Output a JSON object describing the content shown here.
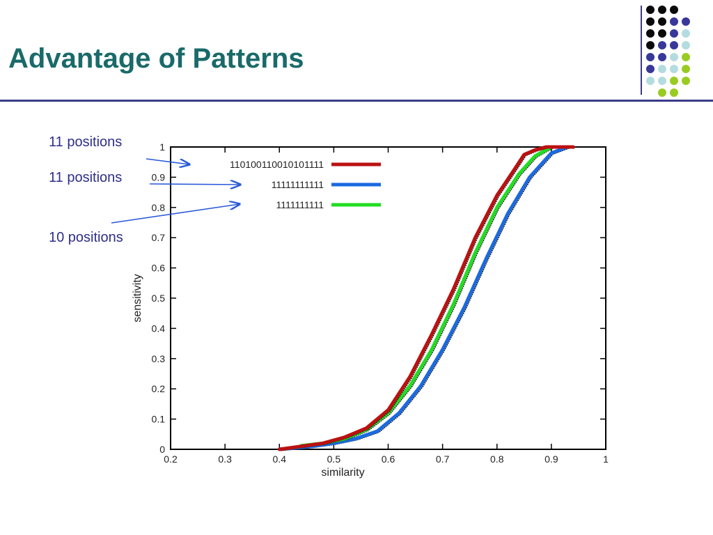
{
  "slide": {
    "title": "Advantage of Patterns"
  },
  "decoration": {
    "dot_colors": {
      "black": "#0a0a0a",
      "indigo": "#38389a",
      "lightblue": "#b4dce0",
      "lime": "#99cc22"
    },
    "dot_rows": [
      [
        "black",
        "black",
        "black",
        null
      ],
      [
        "black",
        "black",
        "indigo",
        "indigo"
      ],
      [
        "black",
        "black",
        "indigo",
        "lightblue"
      ],
      [
        "black",
        "indigo",
        "indigo",
        "lightblue"
      ],
      [
        "indigo",
        "indigo",
        "lightblue",
        "lime"
      ],
      [
        "indigo",
        "lightblue",
        "lightblue",
        "lime"
      ],
      [
        "lightblue",
        "lightblue",
        "lime",
        "lime"
      ],
      [
        null,
        "lime",
        "lime",
        null
      ]
    ]
  },
  "annotations": [
    {
      "label": "11 positions",
      "series": 0
    },
    {
      "label": "11 positions",
      "series": 1
    },
    {
      "label": "10 positions",
      "series": 2
    }
  ],
  "chart_data": {
    "type": "line",
    "xlabel": "similarity",
    "ylabel": "sensitivity",
    "xlim": [
      0.2,
      1.0
    ],
    "ylim": [
      0.0,
      1.0
    ],
    "x_ticks": [
      "0.2",
      "0.3",
      "0.4",
      "0.5",
      "0.6",
      "0.7",
      "0.8",
      "0.9",
      "1"
    ],
    "y_ticks": [
      "0",
      "0.1",
      "0.2",
      "0.3",
      "0.4",
      "0.5",
      "0.6",
      "0.7",
      "0.8",
      "0.9",
      "1"
    ],
    "grid": false,
    "legend_position": "top-left",
    "series": [
      {
        "name": "110100110010101111",
        "color": "#bb1111",
        "points": [
          [
            0.4,
            0.0
          ],
          [
            0.44,
            0.01
          ],
          [
            0.48,
            0.02
          ],
          [
            0.52,
            0.04
          ],
          [
            0.56,
            0.07
          ],
          [
            0.6,
            0.13
          ],
          [
            0.64,
            0.24
          ],
          [
            0.68,
            0.38
          ],
          [
            0.72,
            0.53
          ],
          [
            0.76,
            0.7
          ],
          [
            0.8,
            0.84
          ],
          [
            0.83,
            0.92
          ],
          [
            0.85,
            0.975
          ],
          [
            0.87,
            0.99
          ],
          [
            0.89,
            1.0
          ],
          [
            0.94,
            1.0
          ]
        ]
      },
      {
        "name": "11111111111",
        "color": "#1a6ae0",
        "points": [
          [
            0.4,
            0.0
          ],
          [
            0.46,
            0.01
          ],
          [
            0.5,
            0.02
          ],
          [
            0.54,
            0.035
          ],
          [
            0.58,
            0.06
          ],
          [
            0.62,
            0.12
          ],
          [
            0.66,
            0.21
          ],
          [
            0.7,
            0.33
          ],
          [
            0.74,
            0.47
          ],
          [
            0.78,
            0.63
          ],
          [
            0.82,
            0.78
          ],
          [
            0.86,
            0.9
          ],
          [
            0.9,
            0.98
          ],
          [
            0.93,
            1.0
          ],
          [
            0.94,
            1.0
          ]
        ]
      },
      {
        "name": "1111111111",
        "color": "#22dd22",
        "points": [
          [
            0.44,
            0.012
          ],
          [
            0.48,
            0.02
          ],
          [
            0.52,
            0.035
          ],
          [
            0.56,
            0.065
          ],
          [
            0.6,
            0.12
          ],
          [
            0.64,
            0.21
          ],
          [
            0.68,
            0.33
          ],
          [
            0.72,
            0.48
          ],
          [
            0.76,
            0.65
          ],
          [
            0.8,
            0.8
          ],
          [
            0.84,
            0.91
          ],
          [
            0.87,
            0.97
          ],
          [
            0.9,
            1.0
          ],
          [
            0.93,
            1.0
          ]
        ]
      }
    ]
  }
}
